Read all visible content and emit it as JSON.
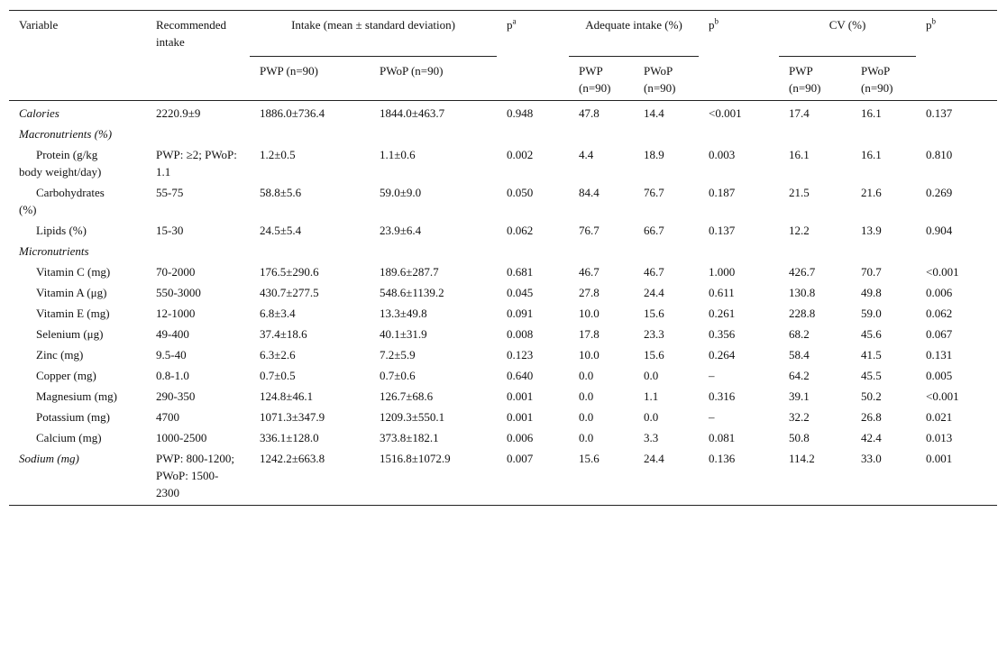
{
  "table": {
    "header": {
      "variable": "Variable",
      "recommended": "Recommended intake",
      "intake": "Intake (mean ± standard deviation)",
      "p_intake": {
        "p": "p",
        "sup": "a"
      },
      "adequate": "Adequate intake (%)",
      "p_adequate": {
        "p": "p",
        "sup": "b"
      },
      "cv": "CV (%)",
      "p_cv": {
        "p": "p",
        "sup": "b"
      },
      "subheaders": [
        "PWP (n=90)",
        "PWoP (n=90)",
        "PWP (n=90)",
        "PWoP (n=90)",
        "PWP (n=90)",
        "PWoP (n=90)"
      ]
    },
    "rows": [
      [
        "Calories",
        "2220.9±9",
        "1886.0±736.4",
        "1844.0±463.7",
        "0.948",
        "47.8",
        "14.4",
        "<0.001",
        "17.4",
        "16.1",
        "0.137"
      ],
      [
        "Macronutrients (%)"
      ],
      [
        "Protein (g/kg body weight/day)",
        "PWP: ≥2; PWoP: 1.1",
        "1.2±0.5",
        "1.1±0.6",
        "0.002",
        "4.4",
        "18.9",
        "0.003",
        "16.1",
        "16.1",
        "0.810"
      ],
      [
        "Carbohydrates (%)",
        "55-75",
        "58.8±5.6",
        "59.0±9.0",
        "0.050",
        "84.4",
        "76.7",
        "0.187",
        "21.5",
        "21.6",
        "0.269"
      ],
      [
        "Lipids (%)",
        "15-30",
        "24.5±5.4",
        "23.9±6.4",
        "0.062",
        "76.7",
        "66.7",
        "0.137",
        "12.2",
        "13.9",
        "0.904"
      ],
      [
        "Micronutrients"
      ],
      [
        "Vitamin C (mg)",
        "70-2000",
        "176.5±290.6",
        "189.6±287.7",
        "0.681",
        "46.7",
        "46.7",
        "1.000",
        "426.7",
        "70.7",
        "<0.001"
      ],
      [
        "Vitamin A (μg)",
        "550-3000",
        "430.7±277.5",
        "548.6±1139.2",
        "0.045",
        "27.8",
        "24.4",
        "0.611",
        "130.8",
        "49.8",
        "0.006"
      ],
      [
        "Vitamin E (mg)",
        "12-1000",
        "6.8±3.4",
        "13.3±49.8",
        "0.091",
        "10.0",
        "15.6",
        "0.261",
        "228.8",
        "59.0",
        "0.062"
      ],
      [
        "Selenium (μg)",
        "49-400",
        "37.4±18.6",
        "40.1±31.9",
        "0.008",
        "17.8",
        "23.3",
        "0.356",
        "68.2",
        "45.6",
        "0.067"
      ],
      [
        "Zinc (mg)",
        "9.5-40",
        "6.3±2.6",
        "7.2±5.9",
        "0.123",
        "10.0",
        "15.6",
        "0.264",
        "58.4",
        "41.5",
        "0.131"
      ],
      [
        "Copper (mg)",
        "0.8-1.0",
        "0.7±0.5",
        "0.7±0.6",
        "0.640",
        "0.0",
        "0.0",
        "–",
        "64.2",
        "45.5",
        "0.005"
      ],
      [
        "Magnesium (mg)",
        "290-350",
        "124.8±46.1",
        "126.7±68.6",
        "0.001",
        "0.0",
        "1.1",
        "0.316",
        "39.1",
        "50.2",
        "<0.001"
      ],
      [
        "Potassium (mg)",
        "4700",
        "1071.3±347.9",
        "1209.3±550.1",
        "0.001",
        "0.0",
        "0.0",
        "–",
        "32.2",
        "26.8",
        "0.021"
      ],
      [
        "Calcium (mg)",
        "1000-2500",
        "336.1±128.0",
        "373.8±182.1",
        "0.006",
        "0.0",
        "3.3",
        "0.081",
        "50.8",
        "42.4",
        "0.013"
      ],
      [
        "Sodium (mg)",
        "PWP: 800-1200; PWoP: 1500-2300",
        "1242.2±663.8",
        "1516.8±1072.9",
        "0.007",
        "15.6",
        "24.4",
        "0.136",
        "114.2",
        "33.0",
        "0.001"
      ]
    ]
  }
}
